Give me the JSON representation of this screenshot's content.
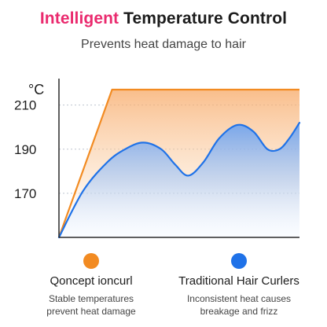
{
  "header": {
    "title_accent": "Intelligent",
    "title_rest": "Temperature Control",
    "subtitle": "Prevents heat damage to hair"
  },
  "colors": {
    "accent": "#ea2a6e",
    "qoncept": "#f28b22",
    "traditional": "#1f72e8"
  },
  "legend": [
    {
      "name": "Qoncept ioncurl",
      "desc_line1": "Stable temperatures",
      "desc_line2": "prevent heat damage",
      "color": "#f28b22"
    },
    {
      "name": "Traditional Hair Curlers",
      "desc_line1": "Inconsistent heat causes",
      "desc_line2": "breakage and frizz",
      "color": "#1f72e8"
    }
  ],
  "chart_data": {
    "type": "area",
    "ylabel": "°C",
    "xlabel": "",
    "yticks": [
      170,
      190,
      210
    ],
    "ylim": [
      150,
      222
    ],
    "xlim": [
      0,
      12
    ],
    "grid": "dotted horizontal",
    "series": [
      {
        "name": "Qoncept ioncurl",
        "points": [
          [
            0,
            150
          ],
          [
            2.65,
            217
          ],
          [
            12,
            217
          ]
        ]
      },
      {
        "name": "Traditional Hair Curlers",
        "points": [
          [
            0,
            150
          ],
          [
            1.2,
            171
          ],
          [
            2.4,
            184
          ],
          [
            3.3,
            190
          ],
          [
            4.2,
            193
          ],
          [
            5.1,
            190
          ],
          [
            5.8,
            183
          ],
          [
            6.45,
            178
          ],
          [
            7.2,
            184
          ],
          [
            8.0,
            195
          ],
          [
            8.9,
            201
          ],
          [
            9.7,
            198
          ],
          [
            10.4,
            190
          ],
          [
            11.0,
            190
          ],
          [
            11.5,
            195
          ],
          [
            12,
            202
          ]
        ]
      }
    ]
  }
}
